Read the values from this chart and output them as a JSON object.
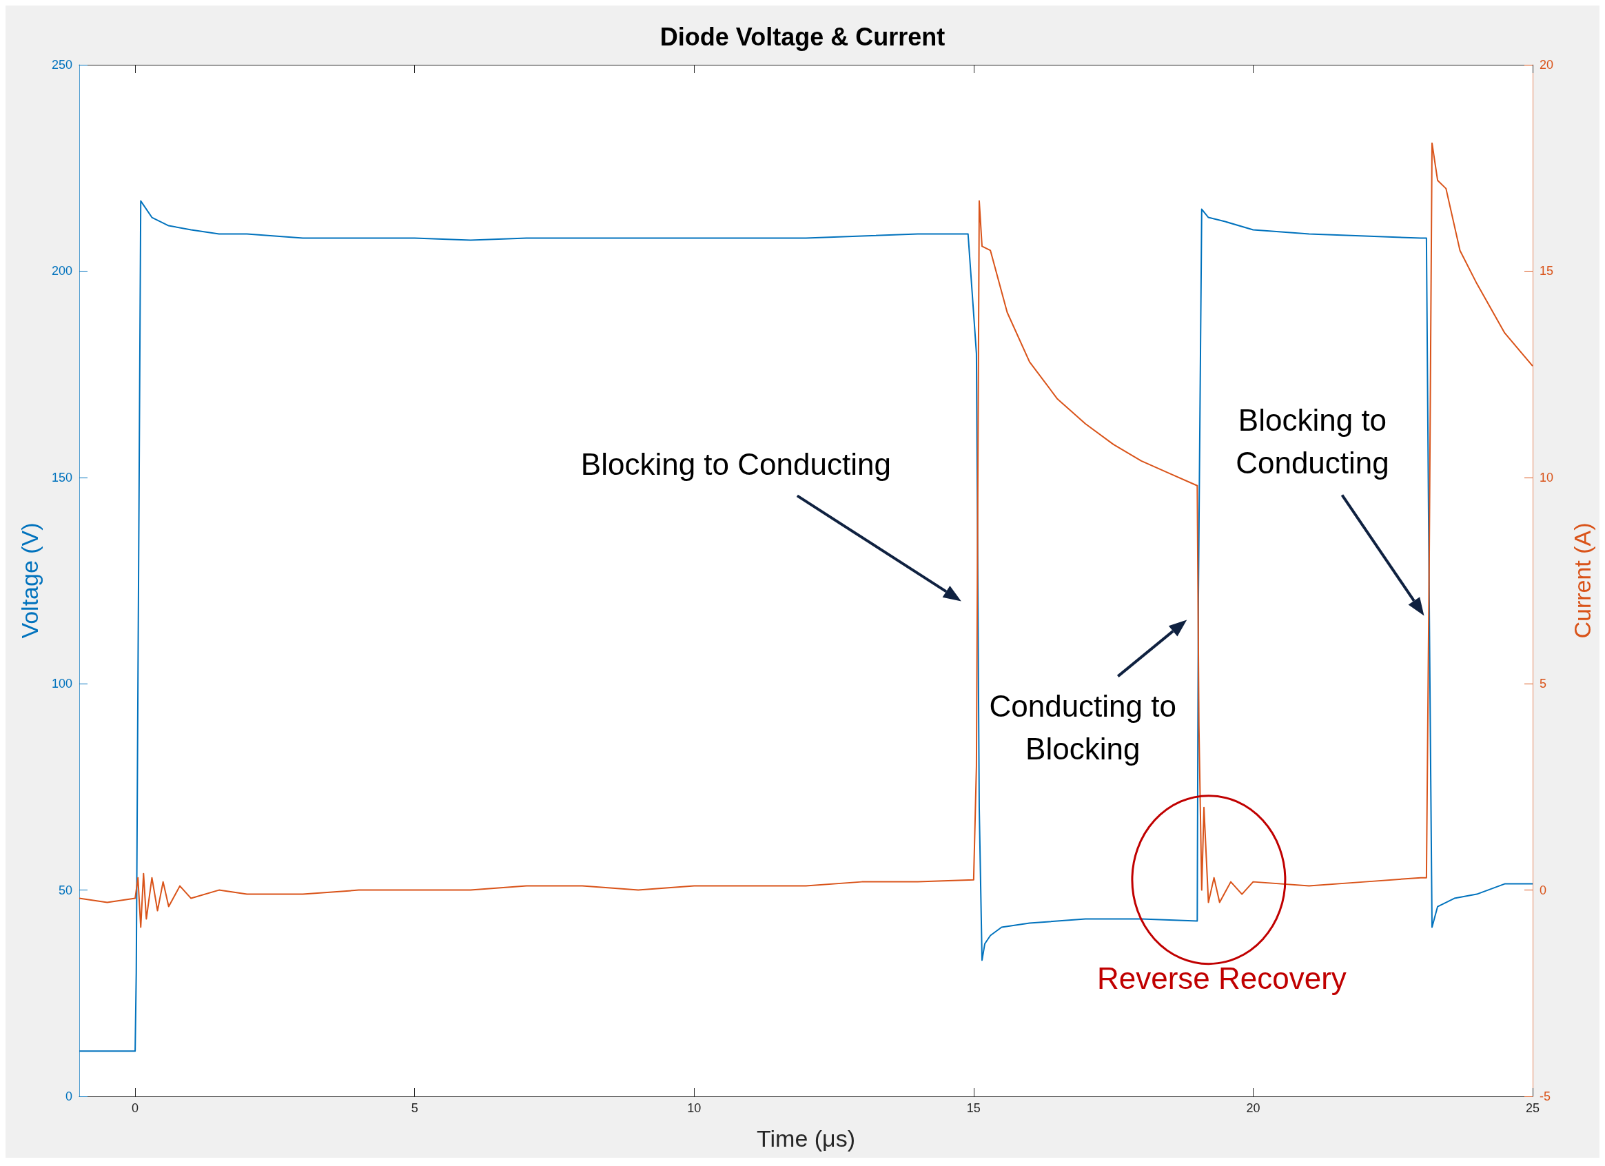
{
  "chart_data": {
    "type": "line",
    "title": "Diode Voltage & Current",
    "xlabel": "Time (μs)",
    "ylabel": "Voltage (V)",
    "y2label": "Current (A)",
    "xlim": [
      -1,
      25
    ],
    "xticks": [
      0,
      5,
      10,
      15,
      20,
      25
    ],
    "ylim": [
      0,
      250
    ],
    "yticks": [
      0,
      50,
      100,
      150,
      200,
      250
    ],
    "y2lim": [
      -5,
      20
    ],
    "y2ticks": [
      -5,
      0,
      5,
      10,
      15,
      20
    ],
    "grid": false,
    "line_style": "solid",
    "marker": "none",
    "series": [
      {
        "color": "#0072bd",
        "x": [
          -1,
          -0.5,
          0,
          0.02,
          0.1,
          0.3,
          0.6,
          1,
          1.5,
          2,
          3,
          4,
          5,
          6,
          7,
          8,
          9,
          10,
          11,
          12,
          13,
          14,
          14.9,
          15.05,
          15.1,
          15.15,
          15.2,
          15.3,
          15.5,
          16,
          17,
          18,
          19,
          19.02,
          19.08,
          19.2,
          19.5,
          20,
          20.5,
          21,
          22,
          23,
          23.1,
          23.15,
          23.2,
          23.3,
          23.6,
          24,
          24.5,
          25
        ],
        "values": [
          11,
          11,
          11,
          30,
          217,
          213,
          211,
          210,
          209,
          209,
          208,
          208,
          208,
          207.5,
          208,
          208,
          208,
          208,
          208,
          208,
          208.5,
          209,
          209,
          180,
          70,
          33,
          37,
          39,
          41,
          42,
          43,
          43,
          42.5,
          120,
          215,
          213,
          212,
          210,
          209.5,
          209,
          208.5,
          208,
          208,
          120,
          41,
          46,
          48,
          49,
          51.5,
          51.5
        ]
      },
      {
        "color": "#d95319",
        "axis": "y2",
        "x": [
          -1,
          -0.5,
          0,
          0.05,
          0.1,
          0.15,
          0.2,
          0.3,
          0.4,
          0.5,
          0.6,
          0.8,
          1,
          1.5,
          2,
          3,
          4,
          5,
          6,
          7,
          8,
          9,
          10,
          11,
          12,
          13,
          14,
          15,
          15.05,
          15.1,
          15.15,
          15.3,
          15.6,
          16,
          16.5,
          17,
          17.5,
          18,
          18.5,
          19,
          19.03,
          19.08,
          19.12,
          19.2,
          19.3,
          19.4,
          19.6,
          19.8,
          20,
          21,
          22,
          23,
          23.1,
          23.15,
          23.2,
          23.3,
          23.45,
          23.7,
          24,
          24.5,
          25
        ],
        "values": [
          -0.2,
          -0.3,
          -0.2,
          0.3,
          -0.9,
          0.4,
          -0.7,
          0.3,
          -0.5,
          0.2,
          -0.4,
          0.1,
          -0.2,
          0,
          -0.1,
          -0.1,
          0,
          0,
          0,
          0.1,
          0.1,
          0,
          0.1,
          0.1,
          0.1,
          0.2,
          0.2,
          0.25,
          3,
          16.7,
          15.6,
          15.5,
          14,
          12.8,
          11.9,
          11.3,
          10.8,
          10.4,
          10.1,
          9.8,
          4,
          0,
          2,
          -0.3,
          0.3,
          -0.3,
          0.2,
          -0.1,
          0.2,
          0.1,
          0.2,
          0.3,
          0.3,
          8,
          18.1,
          17.2,
          17,
          15.5,
          14.7,
          13.5,
          12.7
        ]
      }
    ],
    "annotations": [
      "Blocking to Conducting",
      "Conducting to\nBlocking",
      "Blocking to\nConducting",
      "Reverse Recovery"
    ]
  }
}
